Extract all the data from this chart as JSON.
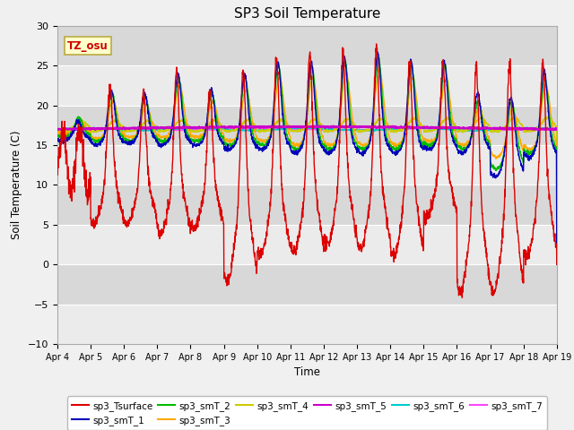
{
  "title": "SP3 Soil Temperature",
  "xlabel": "Time",
  "ylabel": "Soil Temperature (C)",
  "ylim": [
    -10,
    30
  ],
  "yticks": [
    -10,
    -5,
    0,
    5,
    10,
    15,
    20,
    25,
    30
  ],
  "xtick_labels": [
    "Apr 4",
    "Apr 5",
    "Apr 6",
    "Apr 7",
    "Apr 8",
    "Apr 9",
    "Apr 10",
    "Apr 11",
    "Apr 12",
    "Apr 13",
    "Apr 14",
    "Apr 15",
    "Apr 16",
    "Apr 17",
    "Apr 18",
    "Apr 19"
  ],
  "annotation_text": "TZ_osu",
  "annotation_bg": "#ffffcc",
  "annotation_border": "#bbaa44",
  "annotation_color": "#cc0000",
  "plot_bg_light": "#ebebeb",
  "plot_bg_dark": "#d8d8d8",
  "series_colors": {
    "sp3_Tsurface": "#dd0000",
    "sp3_smT_1": "#0000bb",
    "sp3_smT_2": "#00bb00",
    "sp3_smT_3": "#ffaa00",
    "sp3_smT_4": "#cccc00",
    "sp3_smT_5": "#cc00cc",
    "sp3_smT_6": "#00cccc",
    "sp3_smT_7": "#ff44ff"
  },
  "legend_items": [
    {
      "label": "sp3_Tsurface",
      "color": "#dd0000"
    },
    {
      "label": "sp3_smT_1",
      "color": "#0000bb"
    },
    {
      "label": "sp3_smT_2",
      "color": "#00bb00"
    },
    {
      "label": "sp3_smT_3",
      "color": "#ffaa00"
    },
    {
      "label": "sp3_smT_4",
      "color": "#cccc00"
    },
    {
      "label": "sp3_smT_5",
      "color": "#cc00cc"
    },
    {
      "label": "sp3_smT_6",
      "color": "#00cccc"
    },
    {
      "label": "sp3_smT_7",
      "color": "#ff44ff"
    }
  ],
  "n_days": 15,
  "n_per_day": 144,
  "seed": 42
}
